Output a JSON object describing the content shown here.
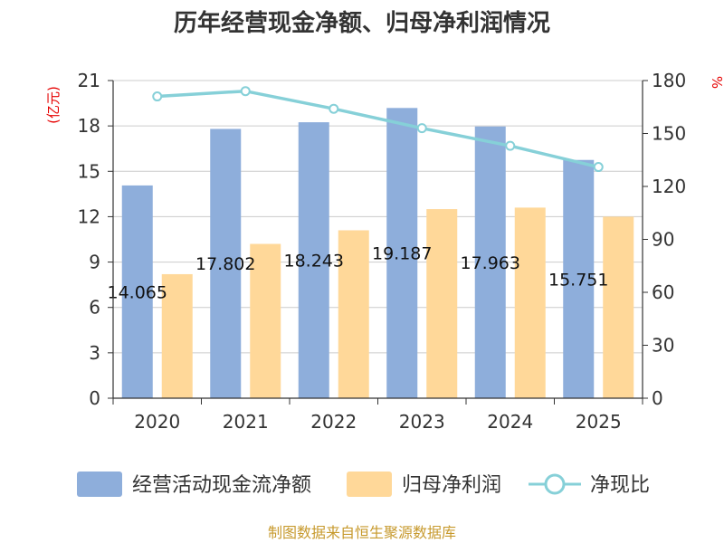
{
  "title": "历年经营现金净额、归母净利润情况",
  "source": "制图数据来自恒生聚源数据库",
  "colors": {
    "bar_cash": "#8eaedb",
    "bar_profit": "#ffd899",
    "line": "#86d0d8",
    "axis": "#333333",
    "grid": "#cccccc",
    "unit_left": "#e60000",
    "unit_right": "#e60000",
    "source": "#c79a2e"
  },
  "chart_data": {
    "type": "bar",
    "title": "历年经营现金净额、归母净利润情况",
    "categories": [
      "2020",
      "2021",
      "2022",
      "2023",
      "2024",
      "2025"
    ],
    "series": [
      {
        "name": "经营活动现金流净额",
        "type": "bar",
        "axis": "left",
        "values": [
          14.065,
          17.802,
          18.243,
          19.187,
          17.963,
          15.751
        ],
        "labels": [
          "14.065",
          "17.802",
          "18.243",
          "19.187",
          "17.963",
          "15.751"
        ]
      },
      {
        "name": "归母净利润",
        "type": "bar",
        "axis": "left",
        "values": [
          8.2,
          10.2,
          11.1,
          12.5,
          12.6,
          12.0
        ]
      },
      {
        "name": "净现比",
        "type": "line",
        "axis": "right",
        "values": [
          171,
          174,
          164,
          153,
          143,
          131
        ]
      }
    ],
    "y_left": {
      "label": "(亿元)",
      "min": 0,
      "max": 21,
      "ticks": [
        "0",
        "3",
        "6",
        "9",
        "12",
        "15",
        "18",
        "21"
      ]
    },
    "y_right": {
      "label": "%",
      "min": 0,
      "max": 180,
      "ticks": [
        "0",
        "30",
        "60",
        "90",
        "120",
        "150",
        "180"
      ]
    },
    "grid": true,
    "legend_position": "bottom"
  }
}
